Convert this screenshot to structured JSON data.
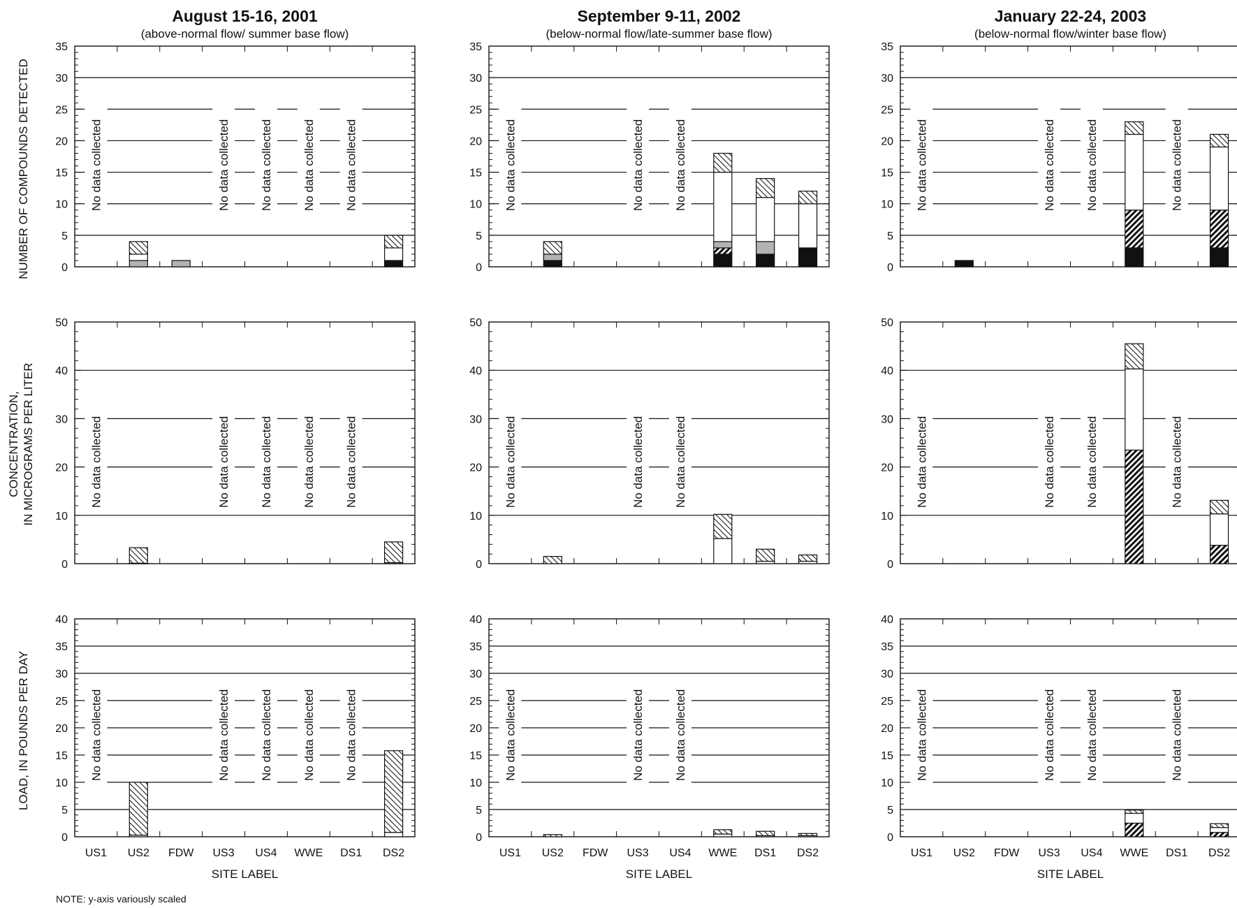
{
  "note": "NOTE: y-axis variously scaled",
  "x_axis_label": "SITE LABEL",
  "no_data_text": "No data collected",
  "y_axis_labels": {
    "count": "NUMBER OF COMPOUNDS DETECTED",
    "conc_line1": "CONCENTRATION,",
    "conc_line2": "IN MICROGRAMS PER LITER",
    "load": "LOAD, IN POUNDS PER DAY"
  },
  "colors": {
    "solid": "#111111",
    "gray": "#b3b3b3",
    "white": "#ffffff",
    "axis": "#111111"
  },
  "chart_data": [
    {
      "type": "bar",
      "stacked": true,
      "title": "August 15-16, 2001",
      "subtitle": "(above-normal flow/ summer base flow)",
      "categories": [
        "US1",
        "US2",
        "FDW",
        "US3",
        "US4",
        "WWE",
        "DS1",
        "DS2"
      ],
      "no_data": [
        "US1",
        "US3",
        "US4",
        "WWE",
        "DS1"
      ],
      "panels": [
        {
          "metric": "count",
          "ylim": [
            0,
            35
          ],
          "yticks": [
            0,
            5,
            10,
            15,
            20,
            25,
            30,
            35
          ],
          "series": [
            {
              "pattern": "solid",
              "values": [
                0,
                0,
                0,
                0,
                0,
                0,
                0,
                1
              ]
            },
            {
              "pattern": "heavy-hatch",
              "values": [
                0,
                0,
                0,
                0,
                0,
                0,
                0,
                0
              ]
            },
            {
              "pattern": "gray",
              "values": [
                0,
                1,
                1,
                0,
                0,
                0,
                0,
                0
              ]
            },
            {
              "pattern": "white",
              "values": [
                0,
                1,
                0,
                0,
                0,
                0,
                0,
                2
              ]
            },
            {
              "pattern": "light-hatch",
              "values": [
                0,
                2,
                0,
                0,
                0,
                0,
                0,
                2
              ]
            }
          ]
        },
        {
          "metric": "concentration",
          "ylim": [
            0,
            50
          ],
          "yticks": [
            0,
            10,
            20,
            30,
            40,
            50
          ],
          "series": [
            {
              "pattern": "solid",
              "values": [
                0,
                0,
                0,
                0,
                0,
                0,
                0,
                0
              ]
            },
            {
              "pattern": "heavy-hatch",
              "values": [
                0,
                0,
                0,
                0,
                0,
                0,
                0,
                0
              ]
            },
            {
              "pattern": "gray",
              "values": [
                0,
                0,
                0,
                0,
                0,
                0,
                0,
                0
              ]
            },
            {
              "pattern": "white",
              "values": [
                0,
                0.1,
                0,
                0,
                0,
                0,
                0,
                0.2
              ]
            },
            {
              "pattern": "light-hatch",
              "values": [
                0,
                3.2,
                0,
                0,
                0,
                0,
                0,
                4.3
              ]
            }
          ]
        },
        {
          "metric": "load",
          "ylim": [
            0,
            40
          ],
          "yticks": [
            0,
            5,
            10,
            15,
            20,
            25,
            30,
            35,
            40
          ],
          "series": [
            {
              "pattern": "solid",
              "values": [
                0,
                0,
                0,
                0,
                0,
                0,
                0,
                0
              ]
            },
            {
              "pattern": "heavy-hatch",
              "values": [
                0,
                0,
                0,
                0,
                0,
                0,
                0,
                0
              ]
            },
            {
              "pattern": "gray",
              "values": [
                0,
                0,
                0,
                0,
                0,
                0,
                0,
                0
              ]
            },
            {
              "pattern": "white",
              "values": [
                0,
                0.3,
                0,
                0,
                0,
                0,
                0,
                0.8
              ]
            },
            {
              "pattern": "light-hatch",
              "values": [
                0,
                9.7,
                0,
                0,
                0,
                0,
                0,
                15.0
              ]
            }
          ]
        }
      ]
    },
    {
      "type": "bar",
      "stacked": true,
      "title": "September 9-11, 2002",
      "subtitle": "(below-normal flow/late-summer base flow)",
      "categories": [
        "US1",
        "US2",
        "FDW",
        "US3",
        "US4",
        "WWE",
        "DS1",
        "DS2"
      ],
      "no_data": [
        "US1",
        "US3",
        "US4"
      ],
      "panels": [
        {
          "metric": "count",
          "ylim": [
            0,
            35
          ],
          "yticks": [
            0,
            5,
            10,
            15,
            20,
            25,
            30,
            35
          ],
          "series": [
            {
              "pattern": "solid",
              "values": [
                0,
                1,
                0,
                0,
                0,
                2,
                2,
                3
              ]
            },
            {
              "pattern": "heavy-hatch",
              "values": [
                0,
                0,
                0,
                0,
                0,
                1,
                0,
                0
              ]
            },
            {
              "pattern": "gray",
              "values": [
                0,
                1,
                0,
                0,
                0,
                1,
                2,
                0
              ]
            },
            {
              "pattern": "white",
              "values": [
                0,
                0,
                0,
                0,
                0,
                11,
                7,
                7
              ]
            },
            {
              "pattern": "light-hatch",
              "values": [
                0,
                2,
                0,
                0,
                0,
                3,
                3,
                2
              ]
            }
          ]
        },
        {
          "metric": "concentration",
          "ylim": [
            0,
            50
          ],
          "yticks": [
            0,
            10,
            20,
            30,
            40,
            50
          ],
          "series": [
            {
              "pattern": "solid",
              "values": [
                0,
                0,
                0,
                0,
                0,
                0,
                0,
                0
              ]
            },
            {
              "pattern": "heavy-hatch",
              "values": [
                0,
                0,
                0,
                0,
                0,
                0,
                0,
                0
              ]
            },
            {
              "pattern": "gray",
              "values": [
                0,
                0,
                0,
                0,
                0,
                0,
                0,
                0
              ]
            },
            {
              "pattern": "white",
              "values": [
                0,
                0,
                0,
                0,
                0,
                5.2,
                0.5,
                0.5
              ]
            },
            {
              "pattern": "light-hatch",
              "values": [
                0,
                1.5,
                0,
                0,
                0,
                5.0,
                2.5,
                1.3
              ]
            }
          ]
        },
        {
          "metric": "load",
          "ylim": [
            0,
            40
          ],
          "yticks": [
            0,
            5,
            10,
            15,
            20,
            25,
            30,
            35,
            40
          ],
          "series": [
            {
              "pattern": "solid",
              "values": [
                0,
                0,
                0,
                0,
                0,
                0,
                0,
                0
              ]
            },
            {
              "pattern": "heavy-hatch",
              "values": [
                0,
                0,
                0,
                0,
                0,
                0,
                0,
                0
              ]
            },
            {
              "pattern": "gray",
              "values": [
                0,
                0,
                0,
                0,
                0,
                0,
                0,
                0
              ]
            },
            {
              "pattern": "white",
              "values": [
                0,
                0,
                0,
                0,
                0,
                0.5,
                0.2,
                0.2
              ]
            },
            {
              "pattern": "light-hatch",
              "values": [
                0,
                0.4,
                0,
                0,
                0,
                0.8,
                0.8,
                0.4
              ]
            }
          ]
        }
      ]
    },
    {
      "type": "bar",
      "stacked": true,
      "title": "January 22-24, 2003",
      "subtitle": "(below-normal flow/winter base flow)",
      "categories": [
        "US1",
        "US2",
        "FDW",
        "US3",
        "US4",
        "WWE",
        "DS1",
        "DS2"
      ],
      "no_data": [
        "US1",
        "US3",
        "US4",
        "DS1"
      ],
      "panels": [
        {
          "metric": "count",
          "ylim": [
            0,
            35
          ],
          "yticks": [
            0,
            5,
            10,
            15,
            20,
            25,
            30,
            35
          ],
          "series": [
            {
              "pattern": "solid",
              "values": [
                0,
                1,
                0,
                0,
                0,
                3,
                0,
                3
              ]
            },
            {
              "pattern": "heavy-hatch",
              "values": [
                0,
                0,
                0,
                0,
                0,
                6,
                0,
                6
              ]
            },
            {
              "pattern": "gray",
              "values": [
                0,
                0,
                0,
                0,
                0,
                0,
                0,
                0
              ]
            },
            {
              "pattern": "white",
              "values": [
                0,
                0,
                0,
                0,
                0,
                12,
                0,
                10
              ]
            },
            {
              "pattern": "light-hatch",
              "values": [
                0,
                0,
                0,
                0,
                0,
                2,
                0,
                2
              ]
            }
          ]
        },
        {
          "metric": "concentration",
          "ylim": [
            0,
            50
          ],
          "yticks": [
            0,
            10,
            20,
            30,
            40,
            50
          ],
          "series": [
            {
              "pattern": "solid",
              "values": [
                0,
                0,
                0,
                0,
                0,
                0,
                0,
                0
              ]
            },
            {
              "pattern": "heavy-hatch",
              "values": [
                0,
                0,
                0,
                0,
                0,
                23.5,
                0,
                3.8
              ]
            },
            {
              "pattern": "gray",
              "values": [
                0,
                0,
                0,
                0,
                0,
                0,
                0,
                0
              ]
            },
            {
              "pattern": "white",
              "values": [
                0,
                0,
                0,
                0,
                0,
                16.8,
                0,
                6.5
              ]
            },
            {
              "pattern": "light-hatch",
              "values": [
                0,
                0,
                0,
                0,
                0,
                5.2,
                0,
                2.8
              ]
            }
          ]
        },
        {
          "metric": "load",
          "ylim": [
            0,
            40
          ],
          "yticks": [
            0,
            5,
            10,
            15,
            20,
            25,
            30,
            35,
            40
          ],
          "series": [
            {
              "pattern": "solid",
              "values": [
                0,
                0,
                0,
                0,
                0,
                0,
                0,
                0
              ]
            },
            {
              "pattern": "heavy-hatch",
              "values": [
                0,
                0,
                0,
                0,
                0,
                2.5,
                0,
                0.8
              ]
            },
            {
              "pattern": "gray",
              "values": [
                0,
                0,
                0,
                0,
                0,
                0,
                0,
                0
              ]
            },
            {
              "pattern": "white",
              "values": [
                0,
                0,
                0,
                0,
                0,
                1.8,
                0,
                0.9
              ]
            },
            {
              "pattern": "light-hatch",
              "values": [
                0,
                0,
                0,
                0,
                0,
                0.6,
                0,
                0.7
              ]
            }
          ]
        }
      ]
    }
  ]
}
